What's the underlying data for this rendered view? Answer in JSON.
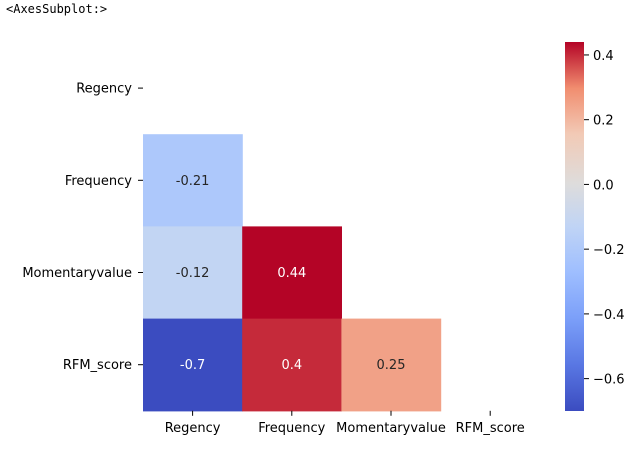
{
  "header": {
    "repr": "<AxesSubplot:>"
  },
  "chart_data": {
    "type": "heatmap",
    "rows": [
      "Regency",
      "Frequency",
      "Momentaryvalue",
      "RFM_score"
    ],
    "cols": [
      "Regency",
      "Frequency",
      "Momentaryvalue",
      "RFM_score"
    ],
    "values": [
      [
        null,
        null,
        null,
        null
      ],
      [
        -0.21,
        null,
        null,
        null
      ],
      [
        -0.12,
        0.44,
        null,
        null
      ],
      [
        -0.7,
        0.4,
        0.25,
        null
      ]
    ],
    "annotations": [
      [
        null,
        null,
        null,
        null
      ],
      [
        "-0.21",
        null,
        null,
        null
      ],
      [
        "-0.12",
        "0.44",
        null,
        null
      ],
      [
        "-0.7",
        "0.4",
        "0.25",
        null
      ]
    ],
    "colormap": "coolwarm",
    "vmin": -0.7,
    "vmax": 0.44,
    "colorbar": {
      "ticks": [
        0.4,
        0.2,
        0.0,
        -0.2,
        -0.4,
        -0.6
      ],
      "tick_labels": [
        "0.4",
        "0.2",
        "0.0",
        "−0.2",
        "−0.4",
        "−0.6"
      ]
    },
    "mask": "upper-triangle"
  }
}
